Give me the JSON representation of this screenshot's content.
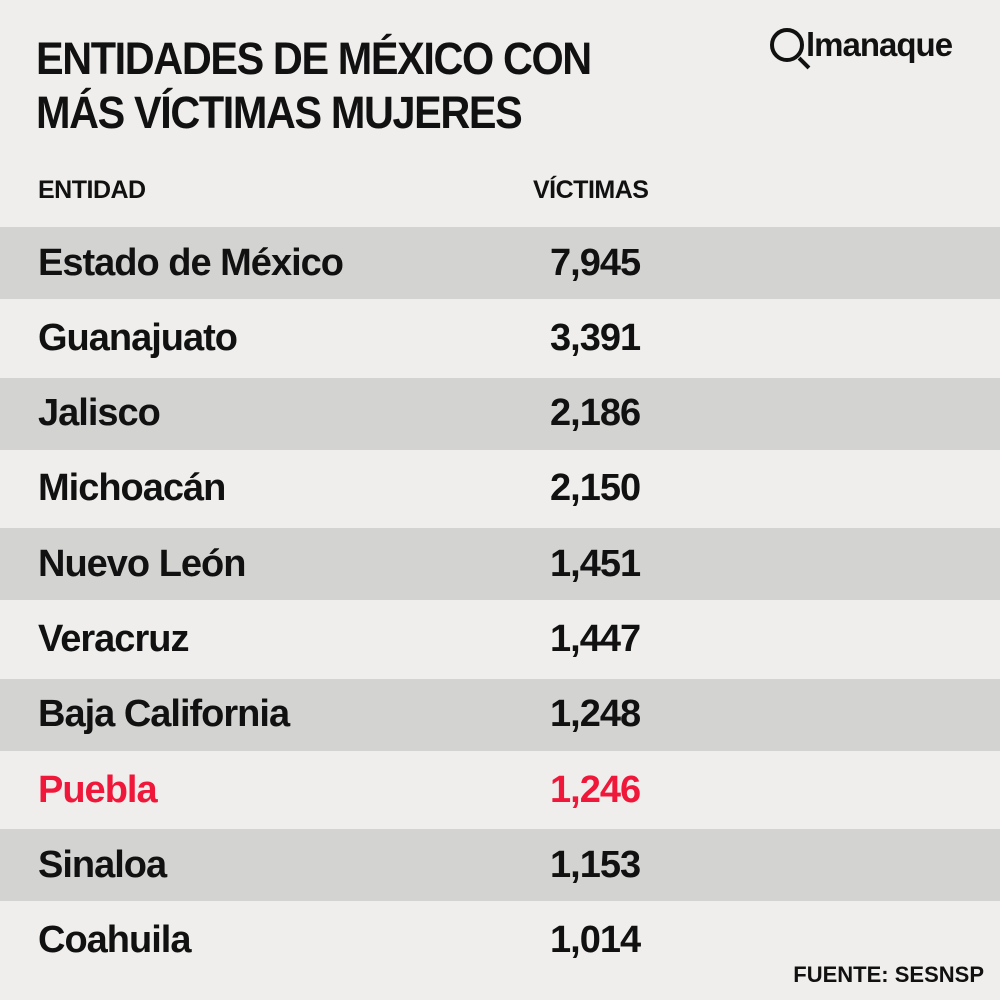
{
  "title": "ENTIDADES DE MÉXICO CON MÁS VÍCTIMAS MUJERES",
  "logo_text": "lmanaque",
  "logo_full": "@lmanaque",
  "columns": {
    "entity": "ENTIDAD",
    "victims": "VÍCTIMAS"
  },
  "highlight_color": "#f0183a",
  "rows": [
    {
      "entity": "Estado de México",
      "victims": "7,945"
    },
    {
      "entity": "Guanajuato",
      "victims": "3,391"
    },
    {
      "entity": "Jalisco",
      "victims": "2,186"
    },
    {
      "entity": "Michoacán",
      "victims": "2,150"
    },
    {
      "entity": "Nuevo León",
      "victims": "1,451"
    },
    {
      "entity": "Veracruz",
      "victims": "1,447"
    },
    {
      "entity": "Baja California",
      "victims": "1,248"
    },
    {
      "entity": "Puebla",
      "victims": "1,246",
      "highlighted": true
    },
    {
      "entity": "Sinaloa",
      "victims": "1,153"
    },
    {
      "entity": "Coahuila",
      "victims": "1,014"
    }
  ],
  "source": "FUENTE: SESNSP"
}
